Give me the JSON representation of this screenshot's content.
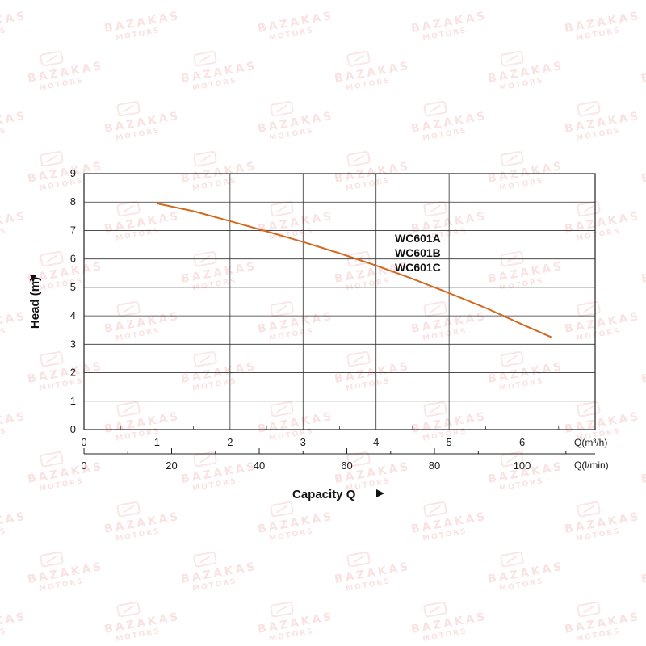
{
  "watermark": {
    "text": "BAZAKAS",
    "subtext": "MOTORS"
  },
  "chart_data": {
    "type": "line",
    "ylabel": "Head (m)",
    "xlabel": "Capacity Q",
    "ylim": [
      0,
      9
    ],
    "yticks": [
      "0",
      "1",
      "2",
      "3",
      "4",
      "5",
      "6",
      "7",
      "8",
      "9"
    ],
    "x_primary": {
      "unit": "Q(m³/h)",
      "ticks": [
        "0",
        "1",
        "2",
        "3",
        "4",
        "5",
        "6"
      ],
      "xlim": [
        0,
        7
      ]
    },
    "x_secondary": {
      "unit": "Q(l/min)",
      "ticks": [
        "0",
        "20",
        "40",
        "60",
        "80",
        "100"
      ],
      "xlim": [
        0,
        116.67
      ]
    },
    "models": [
      "WC601A",
      "WC601B",
      "WC601C"
    ],
    "grid": true,
    "series": [
      {
        "color": "#d2691e",
        "x": [
          1.0,
          1.5,
          2.0,
          2.5,
          3.0,
          3.5,
          4.0,
          4.5,
          5.0,
          5.5,
          6.0,
          6.4
        ],
        "y": [
          7.95,
          7.68,
          7.33,
          6.97,
          6.6,
          6.2,
          5.77,
          5.3,
          4.8,
          4.28,
          3.7,
          3.25
        ]
      }
    ]
  }
}
